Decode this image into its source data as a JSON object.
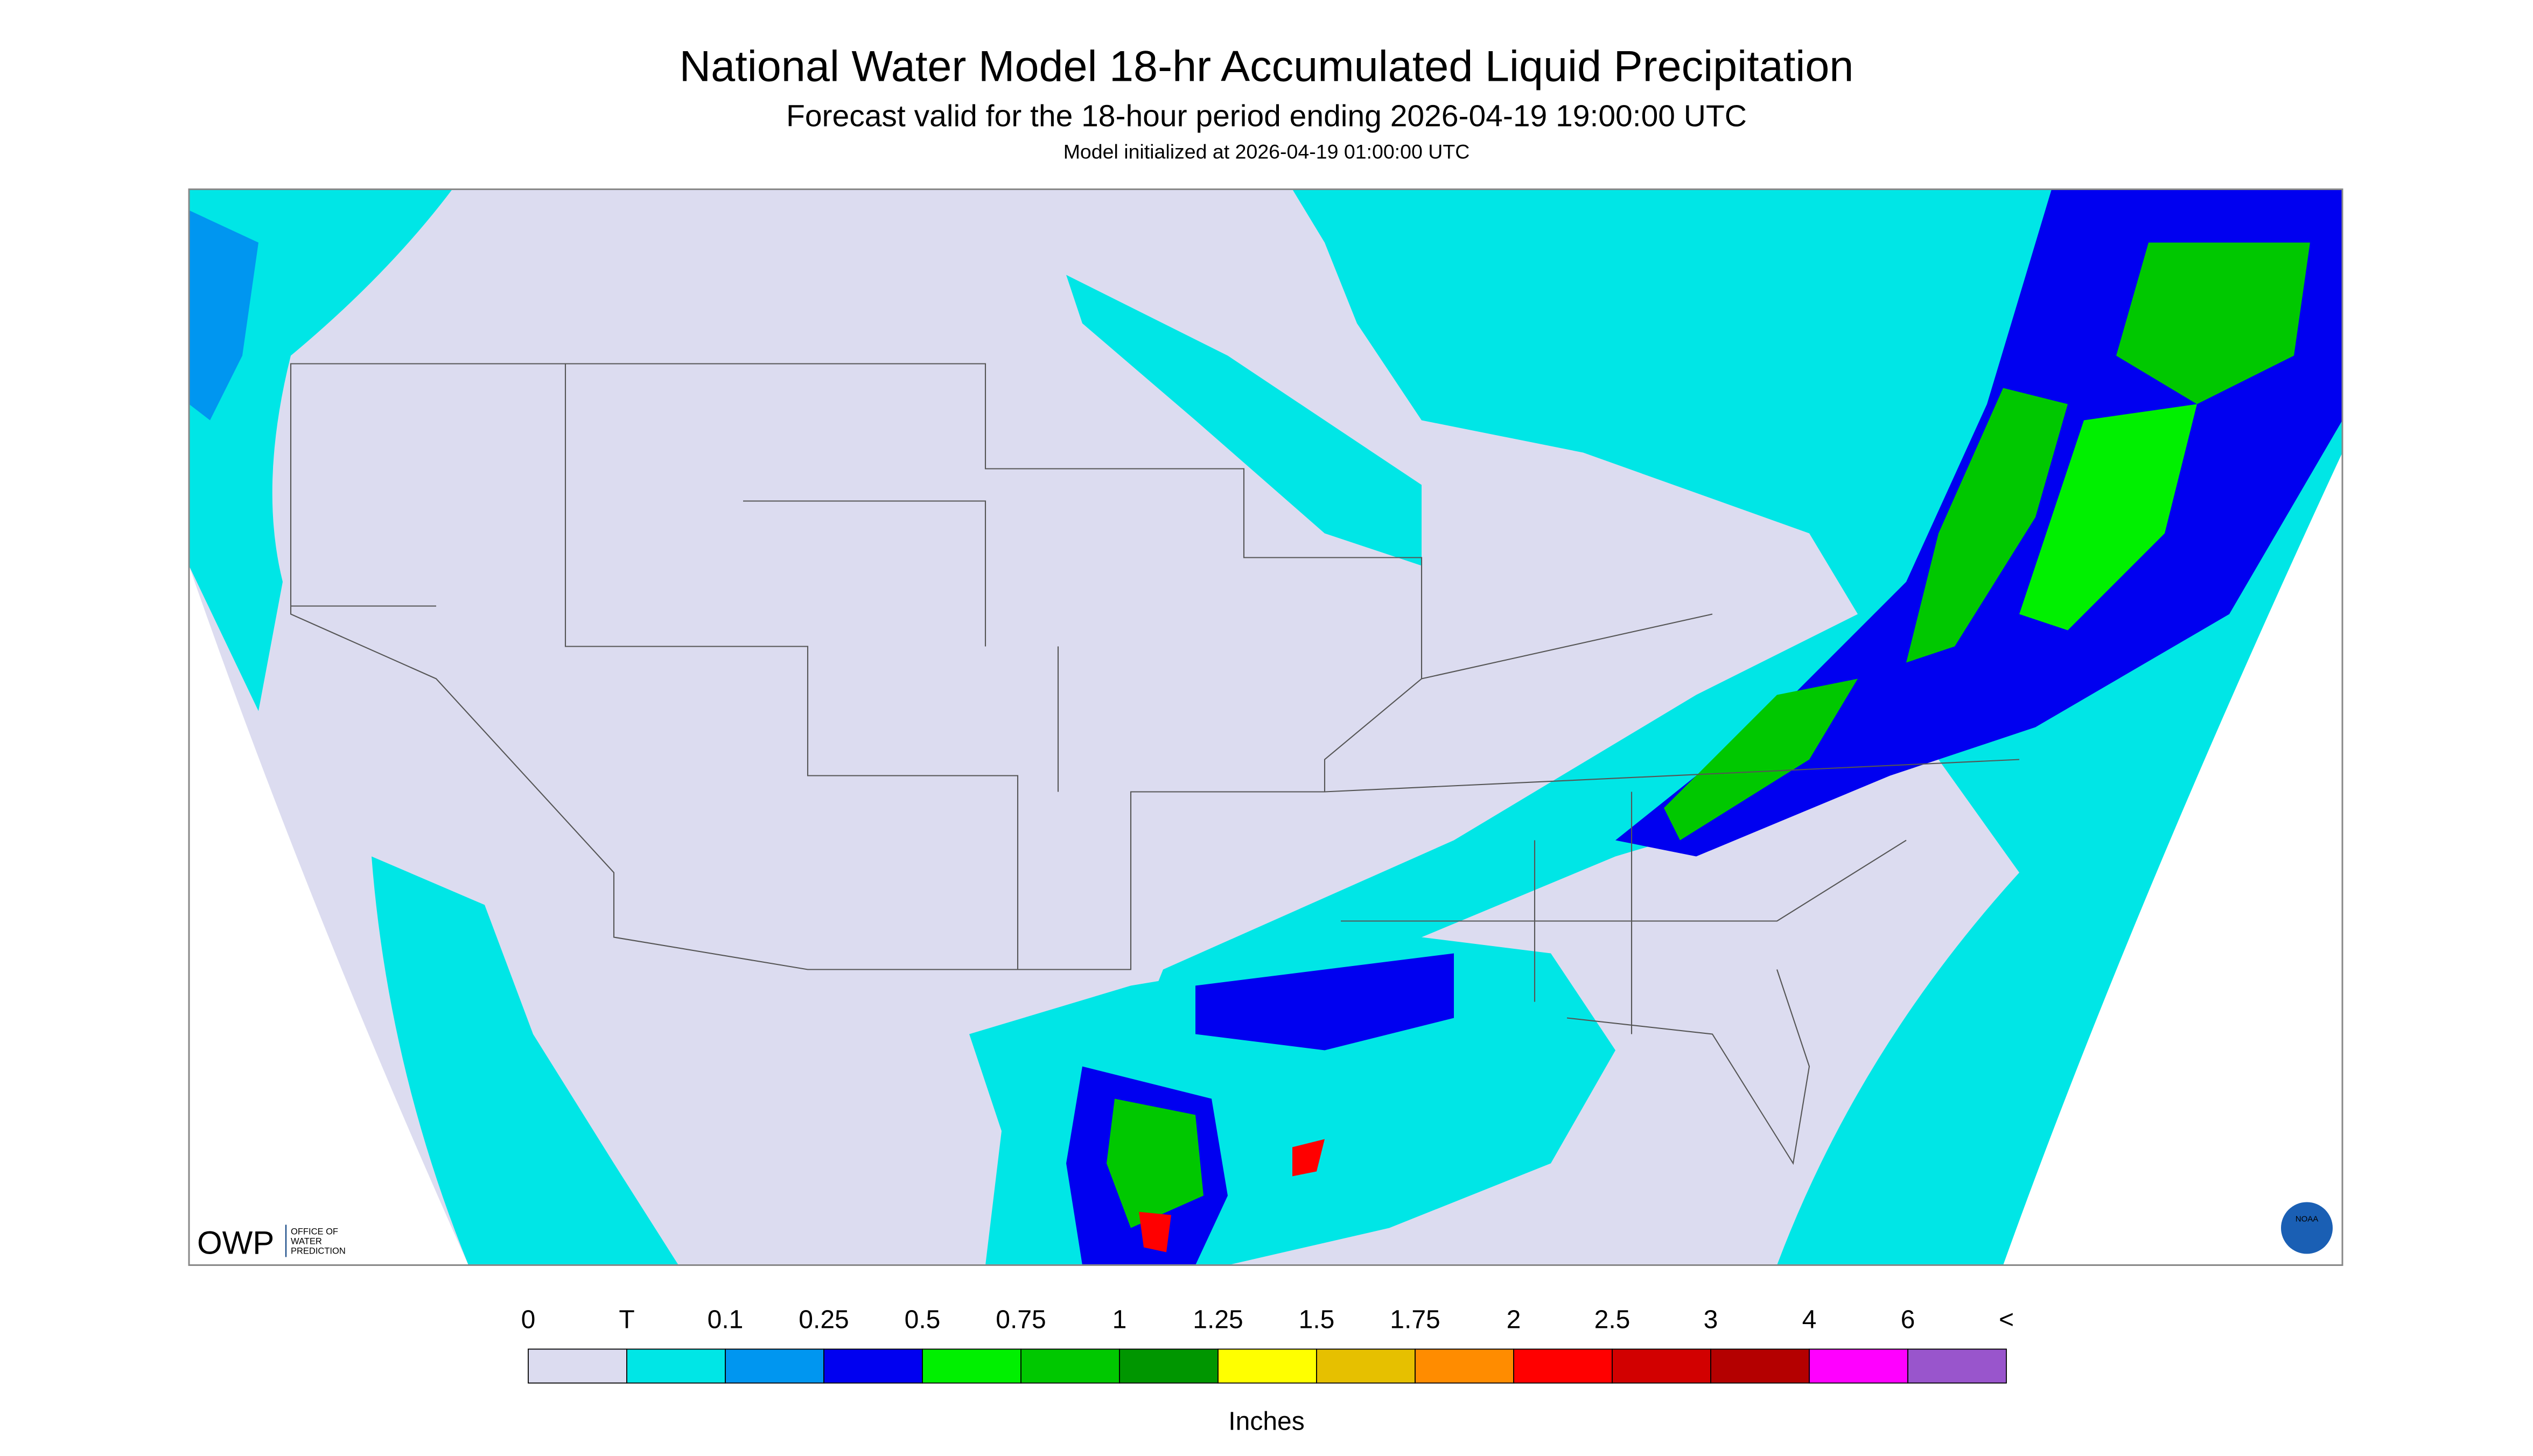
{
  "header": {
    "title": "National Water Model 18-hr Accumulated Liquid Precipitation",
    "subtitle": "Forecast valid for the 18-hour period ending 2026-04-19 19:00:00 UTC",
    "note": "Model initialized at 2026-04-19 01:00:00 UTC"
  },
  "logos": {
    "owp": "OWP",
    "owp_name": [
      "OFFICE OF",
      "WATER",
      "PREDICTION"
    ],
    "noaa": "NOAA"
  },
  "legend": {
    "labels": [
      "0",
      "T",
      "0.1",
      "0.25",
      "0.5",
      "0.75",
      "1",
      "1.25",
      "1.5",
      "1.75",
      "2",
      "2.5",
      "3",
      "4",
      "6",
      "<"
    ],
    "colors": [
      "#dcdcf0",
      "#00e6e6",
      "#0096f0",
      "#0000f0",
      "#00f000",
      "#00c800",
      "#009600",
      "#ffff00",
      "#e6c000",
      "#ff8c00",
      "#ff0000",
      "#d20000",
      "#b40000",
      "#ff00ff",
      "#9955cc"
    ],
    "unit": "Inches"
  }
}
